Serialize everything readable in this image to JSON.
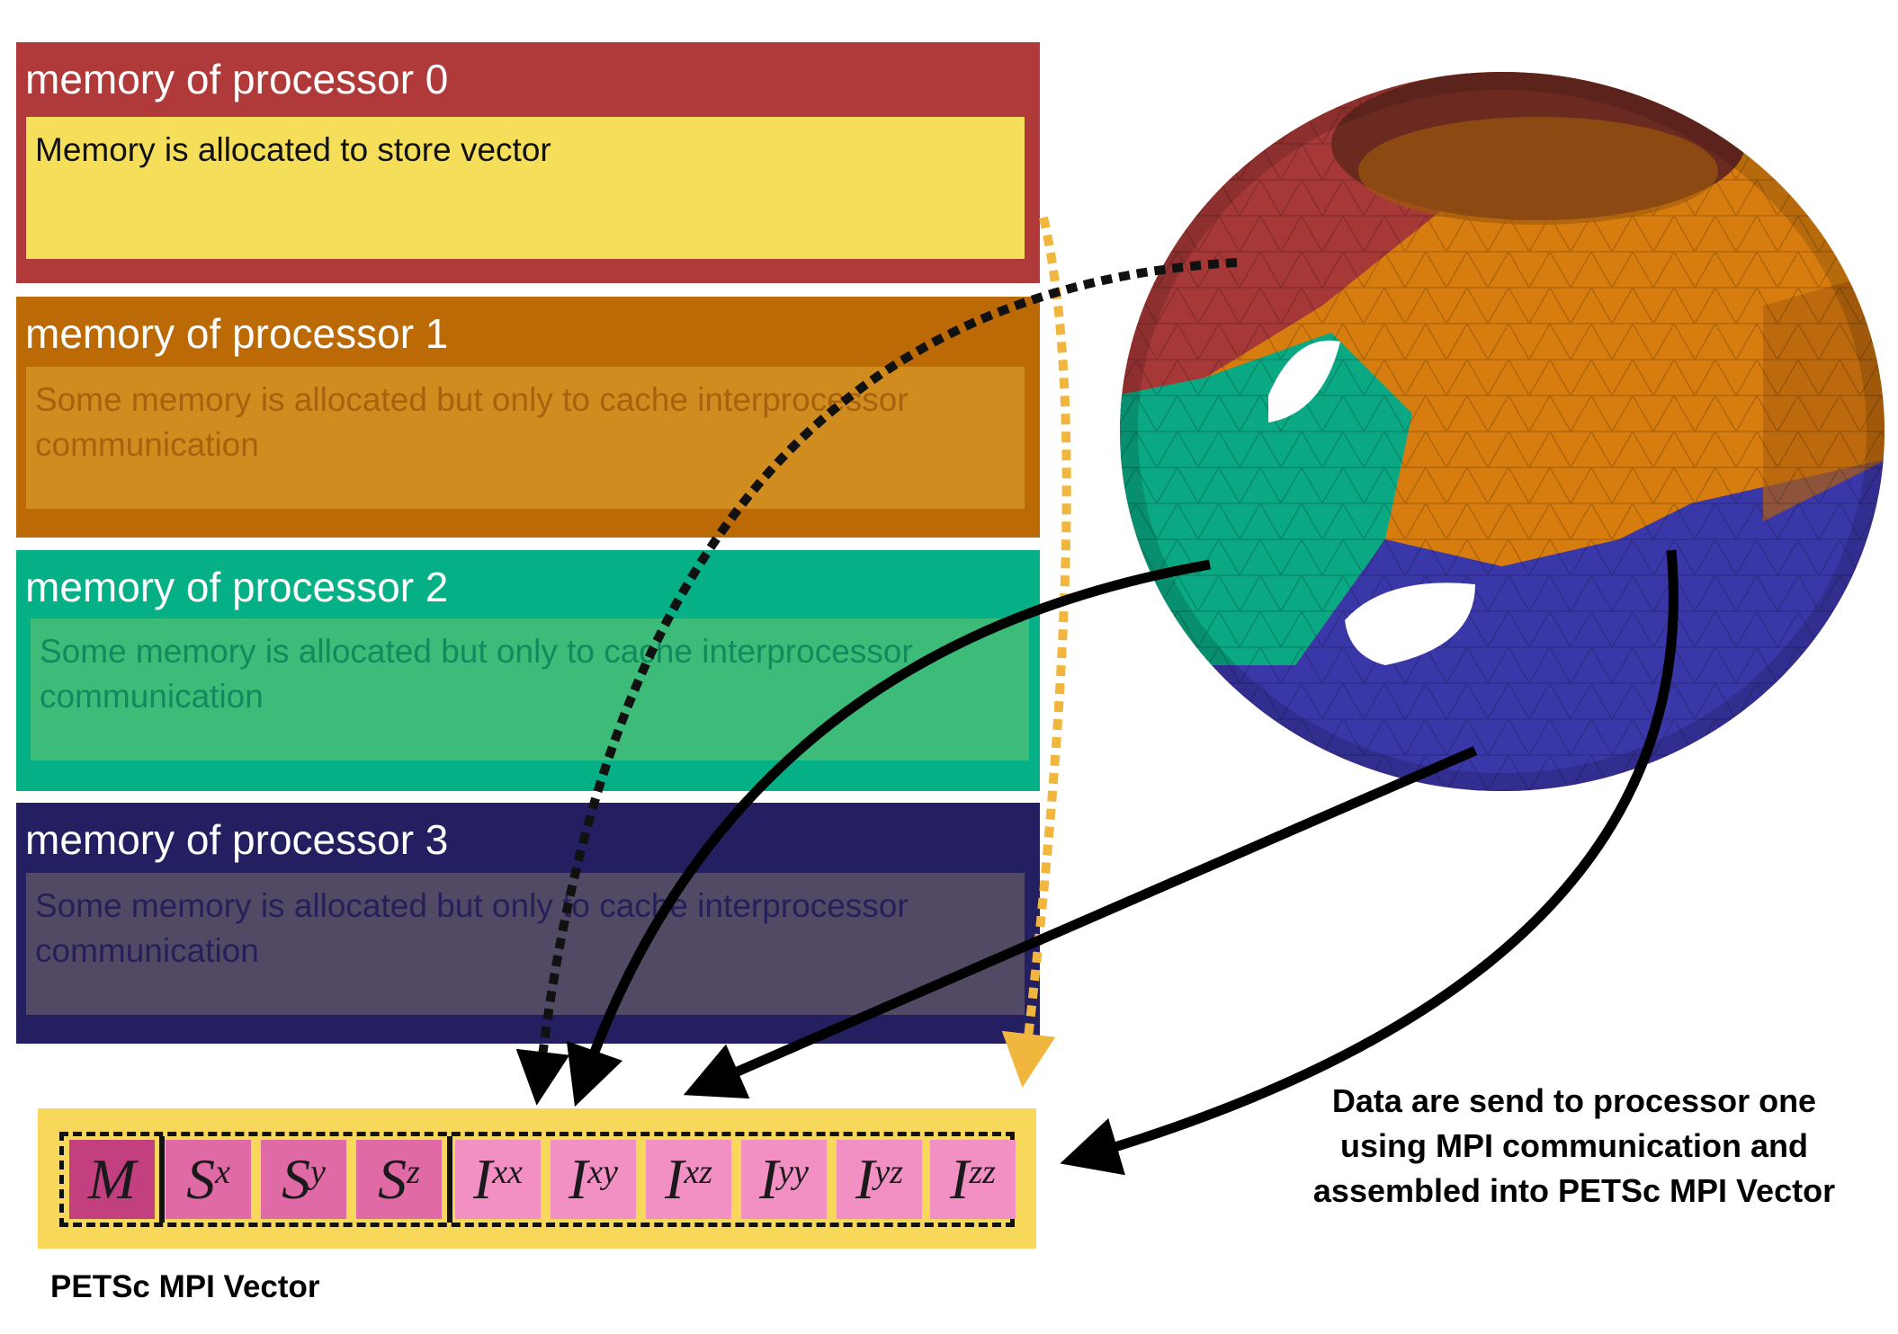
{
  "processors": [
    {
      "title": "memory of processor 0",
      "text": "Memory is allocated to store vector",
      "bg": "#b03a3a",
      "inner": "#f5df5a",
      "textColor": "#111111"
    },
    {
      "title": "memory of processor 1",
      "text": "Some memory is allocated but only to cache interprocessor communication",
      "bg": "#bb6a06",
      "inner": "#d08c1e",
      "textColor": "#a8620e"
    },
    {
      "title": "memory of processor 2",
      "text": "Some memory is allocated but only to cache interprocessor communication",
      "bg": "#05b086",
      "inner": "#3dbb78",
      "textColor": "#118a5e"
    },
    {
      "title": "memory of processor 3",
      "text": "Some memory is allocated but only to cache interprocessor communication",
      "bg": "#241f60",
      "inner": "#524a64",
      "textColor": "#25205a"
    }
  ],
  "vector": {
    "label": "PETSc MPI Vector",
    "cells": [
      {
        "base": "M",
        "sup": "",
        "color": "#c2407f"
      },
      {
        "base": "S",
        "sup": "x",
        "color": "#df6aa6"
      },
      {
        "base": "S",
        "sup": "y",
        "color": "#df6aa6"
      },
      {
        "base": "S",
        "sup": "z",
        "color": "#df6aa6"
      },
      {
        "base": "I",
        "sup": "xx",
        "color": "#f290c3"
      },
      {
        "base": "I",
        "sup": "xy",
        "color": "#f290c3"
      },
      {
        "base": "I",
        "sup": "xz",
        "color": "#f290c3"
      },
      {
        "base": "I",
        "sup": "yy",
        "color": "#f290c3"
      },
      {
        "base": "I",
        "sup": "yz",
        "color": "#f290c3"
      },
      {
        "base": "I",
        "sup": "zz",
        "color": "#f290c3"
      }
    ]
  },
  "note": {
    "line1": "Data are send to processor one",
    "line2": "using MPI communication and",
    "line3": "assembled into PETSc MPI Vector"
  },
  "mesh_colors": {
    "red": "#a63838",
    "orange": "#d77d0f",
    "teal": "#0aa883",
    "blue": "#3a37a8"
  }
}
